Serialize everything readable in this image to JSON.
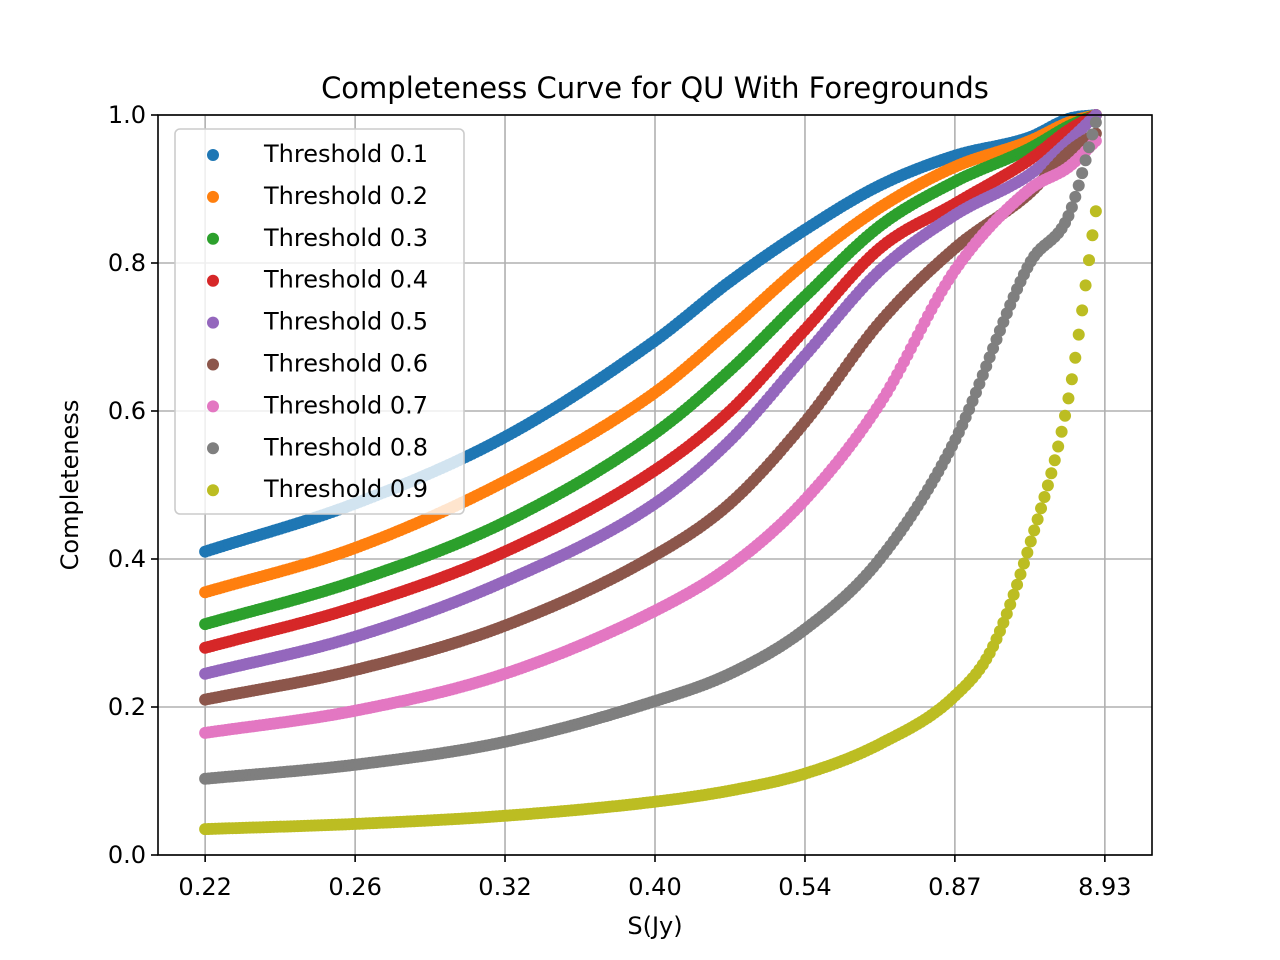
{
  "chart_data": {
    "type": "scatter",
    "title": "Completeness Curve for QU With Foregrounds",
    "xlabel": "S(Jy)",
    "ylabel": "Completeness",
    "x_tick_labels": [
      "0.22",
      "0.26",
      "0.32",
      "0.40",
      "0.54",
      "0.87",
      "8.93"
    ],
    "x_tick_positions": [
      0.0,
      0.1667,
      0.3333,
      0.5,
      0.6667,
      0.8333,
      1.0
    ],
    "x_note": "x axis is quantile-spaced flux: position 0 = 0.22 Jy, position 1 = 8.93 Jy; tick labels printed at equal spacing",
    "xlim": [
      -0.0524,
      1.0524
    ],
    "ylim": [
      0.0,
      1.0
    ],
    "y_ticks": [
      0.0,
      0.2,
      0.4,
      0.6,
      0.8,
      1.0
    ],
    "y_tick_labels": [
      "0.0",
      "0.2",
      "0.4",
      "0.6",
      "0.8",
      "1.0"
    ],
    "grid": true,
    "legend_position": "upper-left",
    "series": [
      {
        "name": "Threshold 0.1",
        "color": "#1f77b4",
        "x": [
          0,
          0.1667,
          0.3333,
          0.5,
          0.5833,
          0.6667,
          0.75,
          0.8333,
          0.9167,
          0.96,
          0.99
        ],
        "y": [
          0.41,
          0.475,
          0.565,
          0.695,
          0.775,
          0.845,
          0.905,
          0.945,
          0.97,
          0.995,
          1.0
        ]
      },
      {
        "name": "Threshold 0.2",
        "color": "#ff7f0e",
        "x": [
          0,
          0.1667,
          0.3333,
          0.5,
          0.5833,
          0.6667,
          0.75,
          0.8333,
          0.9167,
          0.96,
          0.99
        ],
        "y": [
          0.355,
          0.415,
          0.505,
          0.625,
          0.71,
          0.8,
          0.875,
          0.93,
          0.965,
          0.99,
          1.0
        ]
      },
      {
        "name": "Threshold 0.3",
        "color": "#2ca02c",
        "x": [
          0,
          0.1667,
          0.3333,
          0.5,
          0.5833,
          0.6667,
          0.75,
          0.8333,
          0.9167,
          0.96,
          0.99
        ],
        "y": [
          0.312,
          0.37,
          0.45,
          0.57,
          0.655,
          0.755,
          0.85,
          0.91,
          0.955,
          0.985,
          1.0
        ]
      },
      {
        "name": "Threshold 0.4",
        "color": "#d62728",
        "x": [
          0,
          0.1667,
          0.3333,
          0.5,
          0.5833,
          0.6667,
          0.75,
          0.8333,
          0.9167,
          0.96,
          0.99
        ],
        "y": [
          0.28,
          0.335,
          0.41,
          0.52,
          0.6,
          0.71,
          0.82,
          0.88,
          0.94,
          0.98,
          1.0
        ]
      },
      {
        "name": "Threshold 0.5",
        "color": "#9467bd",
        "x": [
          0,
          0.1667,
          0.3333,
          0.5,
          0.5833,
          0.6667,
          0.75,
          0.8333,
          0.9167,
          0.96,
          0.99
        ],
        "y": [
          0.245,
          0.295,
          0.37,
          0.475,
          0.56,
          0.675,
          0.79,
          0.865,
          0.92,
          0.965,
          1.0
        ]
      },
      {
        "name": "Threshold 0.6",
        "color": "#8c564b",
        "x": [
          0,
          0.1667,
          0.3333,
          0.5,
          0.5833,
          0.6667,
          0.75,
          0.8333,
          0.9167,
          0.96,
          0.99
        ],
        "y": [
          0.21,
          0.25,
          0.31,
          0.405,
          0.475,
          0.585,
          0.72,
          0.82,
          0.895,
          0.95,
          0.975
        ]
      },
      {
        "name": "Threshold 0.7",
        "color": "#e377c2",
        "x": [
          0,
          0.1667,
          0.3333,
          0.5,
          0.5833,
          0.6667,
          0.75,
          0.8333,
          0.9167,
          0.96,
          0.99
        ],
        "y": [
          0.165,
          0.195,
          0.245,
          0.33,
          0.39,
          0.48,
          0.61,
          0.79,
          0.9,
          0.93,
          0.965
        ]
      },
      {
        "name": "Threshold 0.8",
        "color": "#7f7f7f",
        "x": [
          0,
          0.1667,
          0.3333,
          0.5,
          0.5833,
          0.6667,
          0.75,
          0.8333,
          0.9167,
          0.96,
          0.99
        ],
        "y": [
          0.103,
          0.122,
          0.153,
          0.208,
          0.245,
          0.305,
          0.4,
          0.56,
          0.8,
          0.865,
          0.99
        ]
      },
      {
        "name": "Threshold 0.9",
        "color": "#bcbd22",
        "x": [
          0,
          0.1667,
          0.3333,
          0.5,
          0.5833,
          0.6667,
          0.75,
          0.8333,
          0.875,
          0.9167,
          0.96,
          0.99
        ],
        "y": [
          0.035,
          0.042,
          0.053,
          0.072,
          0.087,
          0.11,
          0.15,
          0.215,
          0.28,
          0.42,
          0.62,
          0.87
        ]
      }
    ]
  }
}
